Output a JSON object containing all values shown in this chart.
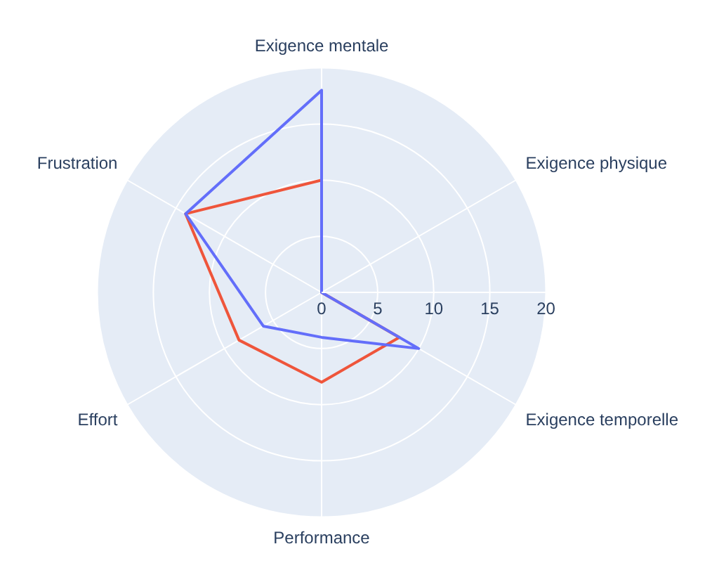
{
  "chart_data": {
    "type": "radar",
    "categories": [
      "Exigence mentale",
      "Exigence physique",
      "Exigence temporelle",
      "Performance",
      "Effort",
      "Frustration"
    ],
    "series": [
      {
        "color": "#636efa",
        "values": [
          18,
          0,
          10,
          4,
          6,
          14
        ]
      },
      {
        "color": "#ef553b",
        "values": [
          10,
          0,
          8,
          8,
          8.5,
          14
        ]
      }
    ],
    "ylim": [
      0,
      20
    ],
    "yticks": [
      0,
      5,
      10,
      15,
      20
    ],
    "grid": true,
    "legend": false,
    "marker": "none",
    "line_style": "solid"
  }
}
